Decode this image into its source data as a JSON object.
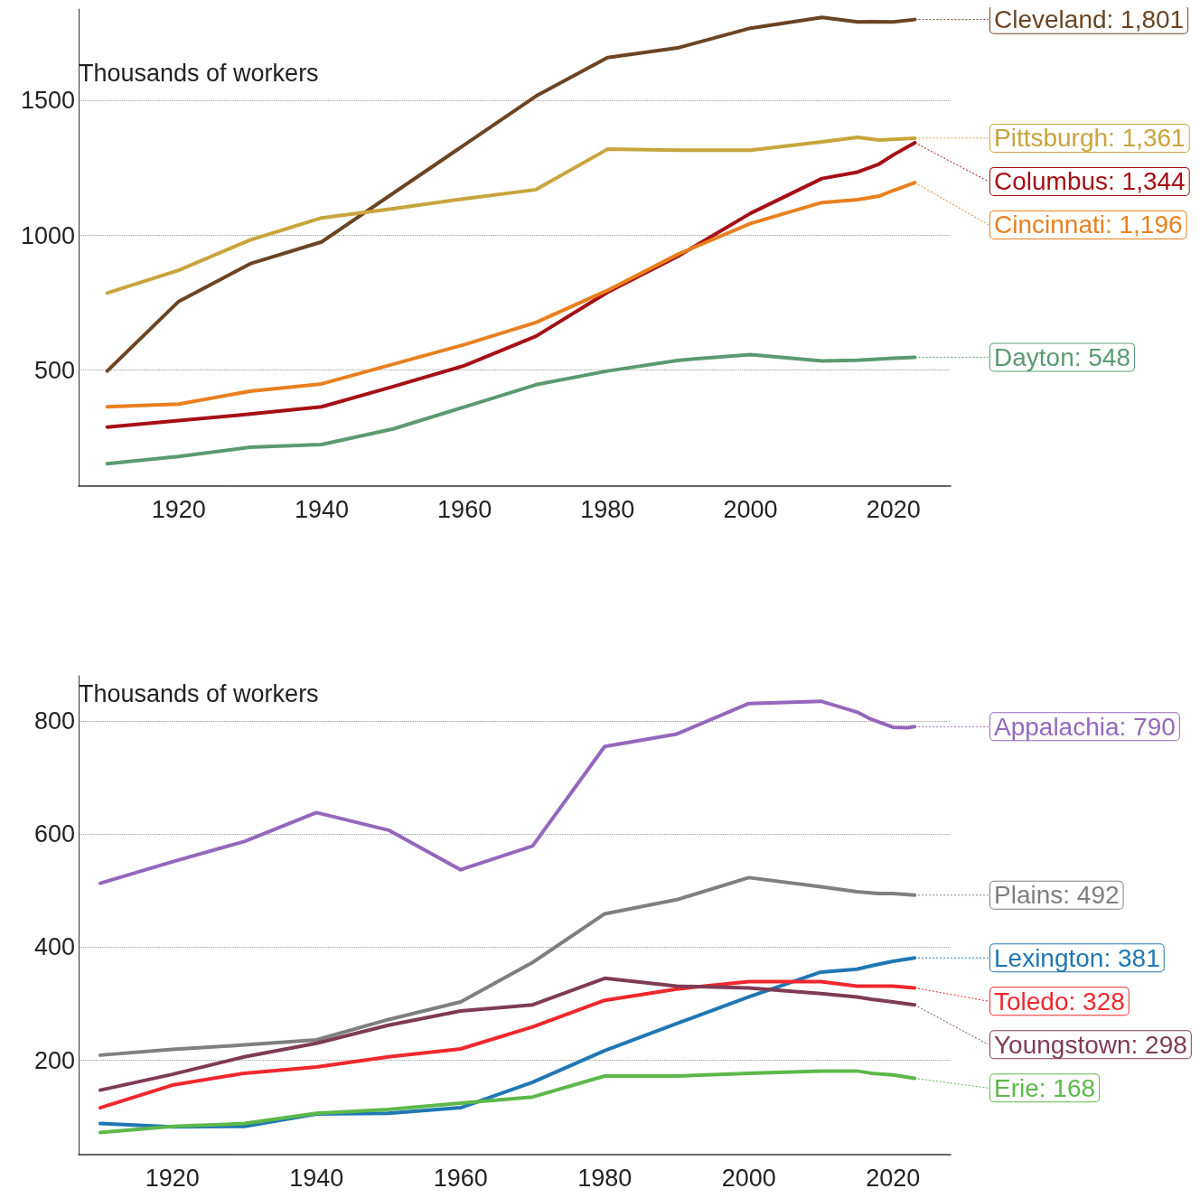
{
  "chart_data": [
    {
      "type": "line",
      "ylabel": "Thousands of workers",
      "xlim": [
        1906,
        2028
      ],
      "xticks": [
        1920,
        1940,
        1960,
        1980,
        2000,
        2020
      ],
      "ylim": [
        70,
        1840
      ],
      "yticks": [
        500,
        1000,
        1500
      ],
      "grid": "y",
      "legend": "right",
      "marker": "none",
      "line_style": "solid",
      "series": [
        {
          "name": "Cleveland: 1,801",
          "color": "#6b4423",
          "x": [
            1910,
            1920,
            1930,
            1940,
            1970,
            1980,
            1990,
            2000,
            2010,
            2015,
            2017,
            2020,
            2023
          ],
          "values": [
            497,
            755,
            895,
            976,
            1517,
            1660,
            1697,
            1769,
            1809,
            1792,
            1793,
            1792,
            1801
          ]
        },
        {
          "name": "Pittsburgh: 1,361",
          "color": "#c8a43c",
          "x": [
            1910,
            1920,
            1930,
            1940,
            1950,
            1960,
            1970,
            1980,
            1990,
            2000,
            2010,
            2015,
            2018,
            2023
          ],
          "values": [
            786,
            871,
            983,
            1065,
            1099,
            1136,
            1170,
            1320,
            1316,
            1316,
            1347,
            1364,
            1354,
            1361
          ]
        },
        {
          "name": "Columbus: 1,344",
          "color": "#a50f15",
          "x": [
            1910,
            1920,
            1930,
            1940,
            1950,
            1960,
            1970,
            1980,
            1990,
            2000,
            2010,
            2015,
            2018,
            2020,
            2023
          ],
          "values": [
            289,
            313,
            337,
            364,
            439,
            517,
            626,
            789,
            925,
            1082,
            1211,
            1235,
            1265,
            1299,
            1344
          ]
        },
        {
          "name": "Cincinnati: 1,196",
          "color": "#e8801e",
          "x": [
            1910,
            1920,
            1930,
            1940,
            1960,
            1970,
            1980,
            1990,
            2000,
            2010,
            2015,
            2018,
            2020,
            2023
          ],
          "values": [
            364,
            374,
            422,
            449,
            595,
            677,
            796,
            932,
            1044,
            1122,
            1133,
            1146,
            1167,
            1196
          ]
        },
        {
          "name": "Dayton: 548",
          "color": "#5a9a72",
          "x": [
            1910,
            1920,
            1930,
            1940,
            1950,
            1960,
            1970,
            1980,
            1990,
            2000,
            2010,
            2015,
            2020,
            2023
          ],
          "values": [
            153,
            180,
            214,
            224,
            282,
            364,
            446,
            497,
            537,
            558,
            534,
            537,
            544,
            548
          ]
        }
      ]
    },
    {
      "type": "line",
      "ylabel": "Thousands of workers",
      "xlim": [
        1907,
        2028
      ],
      "xticks": [
        1920,
        1940,
        1960,
        1980,
        2000,
        2020
      ],
      "ylim": [
        33,
        880
      ],
      "yticks": [
        200,
        400,
        600,
        800
      ],
      "grid": "y",
      "legend": "right",
      "marker": "none",
      "line_style": "solid",
      "series": [
        {
          "name": "Appalachia: 790",
          "color": "#9467bd",
          "x": [
            1910,
            1920,
            1930,
            1940,
            1950,
            1960,
            1970,
            1980,
            1990,
            2000,
            2010,
            2015,
            2017,
            2020,
            2022,
            2023
          ],
          "values": [
            513,
            551,
            587,
            638,
            607,
            537,
            579,
            755,
            777,
            831,
            835,
            816,
            803,
            789,
            788,
            790
          ]
        },
        {
          "name": "Plains: 492",
          "color": "#7f7f7f",
          "x": [
            1910,
            1920,
            1930,
            1940,
            1950,
            1960,
            1970,
            1980,
            1990,
            2000,
            2010,
            2015,
            2018,
            2020,
            2023
          ],
          "values": [
            209,
            219,
            227,
            236,
            272,
            303,
            373,
            459,
            484,
            523,
            507,
            498,
            495,
            495,
            492
          ]
        },
        {
          "name": "Lexington: 381",
          "color": "#1f77b4",
          "x": [
            1910,
            1920,
            1930,
            1940,
            1950,
            1960,
            1970,
            1980,
            1990,
            2000,
            2010,
            2015,
            2017,
            2020,
            2023
          ],
          "values": [
            88,
            82,
            83,
            105,
            106,
            116,
            161,
            217,
            265,
            312,
            356,
            361,
            367,
            375,
            381
          ]
        },
        {
          "name": "Toledo: 328",
          "color": "#f0282d",
          "x": [
            1910,
            1920,
            1930,
            1940,
            1950,
            1960,
            1970,
            1980,
            1990,
            2000,
            2010,
            2015,
            2020,
            2023
          ],
          "values": [
            116,
            156,
            177,
            188,
            206,
            220,
            259,
            306,
            326,
            339,
            339,
            331,
            331,
            328
          ]
        },
        {
          "name": "Youngstown: 298",
          "color": "#7f3b55",
          "x": [
            1910,
            1920,
            1930,
            1940,
            1950,
            1960,
            1970,
            1980,
            1990,
            2000,
            2010,
            2015,
            2017,
            2020,
            2023
          ],
          "values": [
            147,
            175,
            206,
            230,
            262,
            287,
            298,
            345,
            331,
            328,
            318,
            312,
            308,
            303,
            298
          ]
        },
        {
          "name": "Erie: 168",
          "color": "#5cb84a",
          "x": [
            1910,
            1920,
            1930,
            1940,
            1950,
            1960,
            1970,
            1980,
            1990,
            2000,
            2010,
            2015,
            2017,
            2020,
            2023
          ],
          "values": [
            72,
            83,
            88,
            106,
            113,
            124,
            135,
            172,
            172,
            177,
            181,
            181,
            177,
            174,
            168
          ]
        }
      ]
    }
  ]
}
